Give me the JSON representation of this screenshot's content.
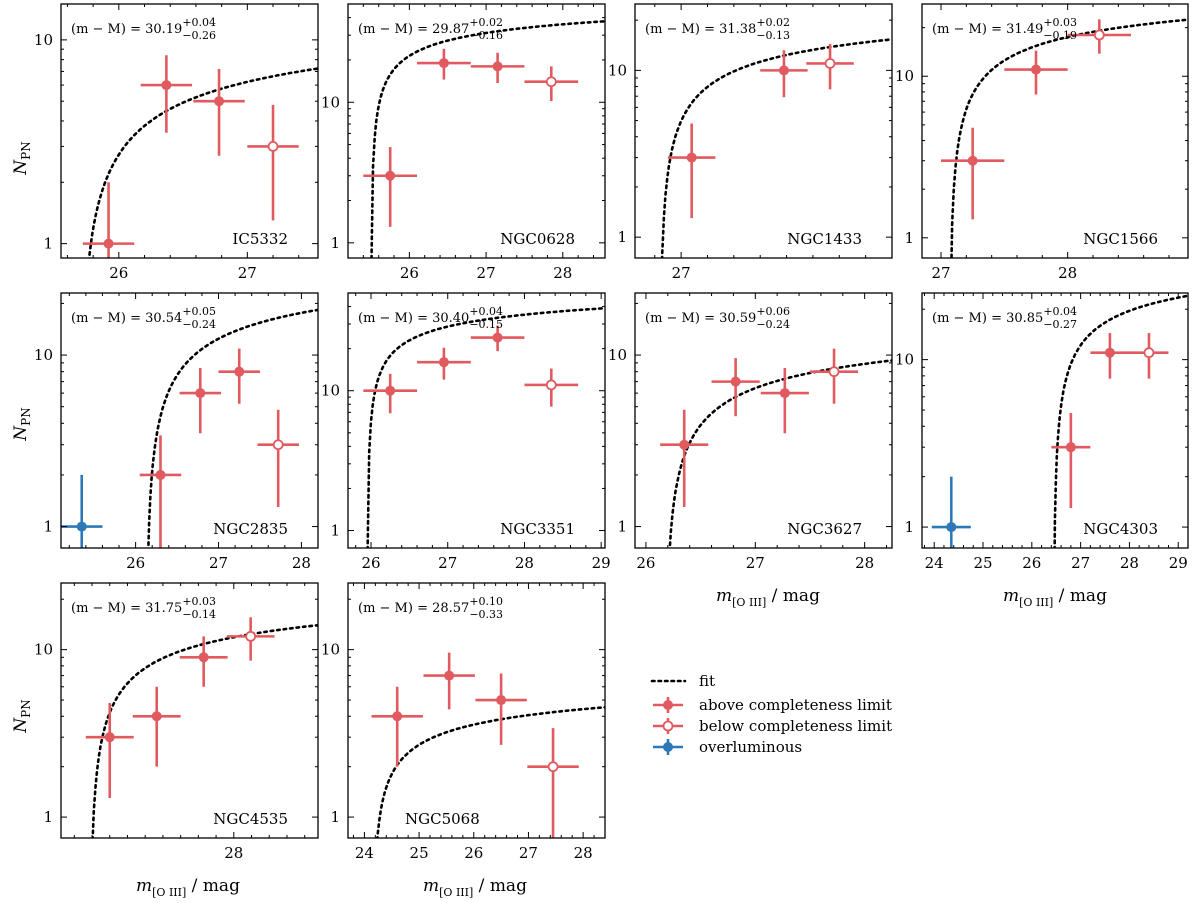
{
  "figure": {
    "ylabel_main": "N",
    "ylabel_sub": "PN",
    "xlabel_main": "m",
    "xlabel_sub": "[O III]",
    "xlabel_unit": " / mag",
    "dm_prefix": "(m − M) = "
  },
  "colors": {
    "above": "#e05a5f",
    "overluminous": "#2d78b7",
    "fit": "#000000"
  },
  "legend": {
    "fit": "fit",
    "above": "above completeness limit",
    "below": "below completeness limit",
    "overluminous": "overluminous"
  },
  "chart_data": [
    {
      "type": "scatter",
      "title": "IC5332",
      "yscale": "log",
      "xlim": [
        25.55,
        27.55
      ],
      "ylim": [
        0.85,
        15
      ],
      "xticks": [
        26,
        27
      ],
      "xticklabels": [
        "26",
        "27"
      ],
      "yticks": [
        1,
        10
      ],
      "yticklabels": [
        "1",
        "10"
      ],
      "dm": {
        "value": "30.19",
        "plus": "+0.04",
        "minus": "−0.26"
      },
      "points": [
        {
          "x": 25.92,
          "y": 1,
          "xerr": 0.2,
          "yerr": [
            1,
            1
          ],
          "kind": "above"
        },
        {
          "x": 26.37,
          "y": 6,
          "xerr": 0.2,
          "yerr": [
            2.5,
            2.4
          ],
          "kind": "above"
        },
        {
          "x": 26.78,
          "y": 5,
          "xerr": 0.2,
          "yerr": [
            2.3,
            2.2
          ],
          "kind": "above"
        },
        {
          "x": 27.2,
          "y": 3,
          "xerr": 0.2,
          "yerr": [
            1.7,
            1.8
          ],
          "kind": "below"
        }
      ],
      "fit": {
        "x0": 25.7,
        "x1": 27.55,
        "a": 3.3,
        "b": 4.3
      }
    },
    {
      "type": "scatter",
      "title": "NGC0628",
      "yscale": "log",
      "xlim": [
        25.2,
        28.55
      ],
      "ylim": [
        0.78,
        50
      ],
      "xticks": [
        26,
        27,
        28
      ],
      "xticklabels": [
        "26",
        "27",
        "28"
      ],
      "yticks": [
        1,
        10
      ],
      "yticklabels": [
        "1",
        "10"
      ],
      "dm": {
        "value": "29.87",
        "plus": "+0.02",
        "minus": "−0.16"
      },
      "points": [
        {
          "x": 25.75,
          "y": 3,
          "xerr": 0.35,
          "yerr": [
            1.7,
            1.8
          ],
          "kind": "above"
        },
        {
          "x": 26.45,
          "y": 19,
          "xerr": 0.35,
          "yerr": [
            4.5,
            5
          ],
          "kind": "above"
        },
        {
          "x": 27.15,
          "y": 18,
          "xerr": 0.35,
          "yerr": [
            4.3,
            4.5
          ],
          "kind": "above"
        },
        {
          "x": 27.85,
          "y": 14,
          "xerr": 0.35,
          "yerr": [
            3.8,
            4
          ],
          "kind": "below"
        }
      ],
      "fit": {
        "x0": 25.5,
        "x1": 28.55,
        "a": 9.5,
        "b": 17
      }
    },
    {
      "type": "scatter",
      "title": "NGC1433",
      "yscale": "log",
      "xlim": [
        26.65,
        28.6
      ],
      "ylim": [
        0.75,
        25
      ],
      "xticks": [
        27
      ],
      "xticklabels": [
        "27"
      ],
      "yticks": [
        1,
        10
      ],
      "yticklabels": [
        "1",
        "10"
      ],
      "dm": {
        "value": "31.38",
        "plus": "+0.02",
        "minus": "−0.13"
      },
      "points": [
        {
          "x": 27.08,
          "y": 3,
          "xerr": 0.18,
          "yerr": [
            1.7,
            1.8
          ],
          "kind": "above"
        },
        {
          "x": 27.78,
          "y": 10,
          "xerr": 0.18,
          "yerr": [
            3.1,
            3.2
          ],
          "kind": "above"
        },
        {
          "x": 28.13,
          "y": 11,
          "xerr": 0.18,
          "yerr": [
            3.3,
            3.4
          ],
          "kind": "below"
        }
      ],
      "fit": {
        "x0": 26.84,
        "x1": 28.6,
        "a": 5.3,
        "b": 9.7
      }
    },
    {
      "type": "scatter",
      "title": "NGC1566",
      "yscale": "log",
      "xlim": [
        26.85,
        28.95
      ],
      "ylim": [
        0.75,
        28
      ],
      "xticks": [
        27,
        28
      ],
      "xticklabels": [
        "27",
        "28"
      ],
      "yticks": [
        1,
        10
      ],
      "yticklabels": [
        "1",
        "10"
      ],
      "dm": {
        "value": "31.49",
        "plus": "+0.03",
        "minus": "−0.19"
      },
      "points": [
        {
          "x": 27.25,
          "y": 3,
          "xerr": 0.25,
          "yerr": [
            1.7,
            1.8
          ],
          "kind": "above"
        },
        {
          "x": 27.75,
          "y": 11,
          "xerr": 0.25,
          "yerr": [
            3.3,
            3.4
          ],
          "kind": "above"
        },
        {
          "x": 28.25,
          "y": 18,
          "xerr": 0.25,
          "yerr": [
            4.2,
            4.5
          ],
          "kind": "below"
        }
      ],
      "fit": {
        "x0": 27.07,
        "x1": 28.95,
        "a": 7.5,
        "b": 10
      }
    },
    {
      "type": "scatter",
      "title": "NGC2835",
      "yscale": "log",
      "xlim": [
        25.1,
        28.2
      ],
      "ylim": [
        0.75,
        23
      ],
      "xticks": [
        26,
        27,
        28
      ],
      "xticklabels": [
        "26",
        "27",
        "28"
      ],
      "yticks": [
        1,
        10
      ],
      "yticklabels": [
        "1",
        "10"
      ],
      "dm": {
        "value": "30.54",
        "plus": "+0.05",
        "minus": "−0.24"
      },
      "points": [
        {
          "x": 25.35,
          "y": 1,
          "xerr": 0.25,
          "yerr": [
            1,
            1
          ],
          "kind": "overluminous"
        },
        {
          "x": 26.3,
          "y": 2,
          "xerr": 0.25,
          "yerr": [
            1.4,
            1.4
          ],
          "kind": "above"
        },
        {
          "x": 26.78,
          "y": 6,
          "xerr": 0.25,
          "yerr": [
            2.5,
            2.4
          ],
          "kind": "above"
        },
        {
          "x": 27.25,
          "y": 8,
          "xerr": 0.25,
          "yerr": [
            2.8,
            2.9
          ],
          "kind": "above"
        },
        {
          "x": 27.72,
          "y": 3,
          "xerr": 0.25,
          "yerr": [
            1.7,
            1.8
          ],
          "kind": "below"
        }
      ],
      "fit": {
        "x0": 26.13,
        "x1": 28.2,
        "a": 8,
        "b": 4.3
      }
    },
    {
      "type": "scatter",
      "title": "NGC3351",
      "yscale": "log",
      "xlim": [
        25.7,
        29.05
      ],
      "ylim": [
        0.75,
        50
      ],
      "xticks": [
        26,
        27,
        28,
        29
      ],
      "xticklabels": [
        "26",
        "27",
        "28",
        "29"
      ],
      "yticks": [
        1,
        10
      ],
      "yticklabels": [
        "1",
        "10"
      ],
      "dm": {
        "value": "30.40",
        "plus": "+0.04",
        "minus": "−0.15"
      },
      "points": [
        {
          "x": 26.25,
          "y": 10,
          "xerr": 0.35,
          "yerr": [
            3.1,
            3.2
          ],
          "kind": "above"
        },
        {
          "x": 26.95,
          "y": 16,
          "xerr": 0.35,
          "yerr": [
            4,
            4.3
          ],
          "kind": "above"
        },
        {
          "x": 27.65,
          "y": 24,
          "xerr": 0.35,
          "yerr": [
            4.8,
            5.2
          ],
          "kind": "above"
        },
        {
          "x": 28.35,
          "y": 11,
          "xerr": 0.35,
          "yerr": [
            3.3,
            3.4
          ],
          "kind": "below"
        }
      ],
      "fit": {
        "x0": 25.95,
        "x1": 29.05,
        "a": 9.7,
        "b": 17.5
      }
    },
    {
      "type": "scatter",
      "title": "NGC3627",
      "yscale": "log",
      "xlim": [
        25.9,
        28.25
      ],
      "ylim": [
        0.75,
        23
      ],
      "xticks": [
        26,
        27,
        28
      ],
      "xticklabels": [
        "26",
        "27",
        "28"
      ],
      "yticks": [
        1,
        10
      ],
      "yticklabels": [
        "1",
        "10"
      ],
      "dm": {
        "value": "30.59",
        "plus": "+0.06",
        "minus": "−0.24"
      },
      "points": [
        {
          "x": 26.35,
          "y": 3,
          "xerr": 0.22,
          "yerr": [
            1.7,
            1.8
          ],
          "kind": "above"
        },
        {
          "x": 26.82,
          "y": 7,
          "xerr": 0.22,
          "yerr": [
            2.6,
            2.6
          ],
          "kind": "above"
        },
        {
          "x": 27.27,
          "y": 6,
          "xerr": 0.22,
          "yerr": [
            2.5,
            2.4
          ],
          "kind": "above"
        },
        {
          "x": 27.72,
          "y": 8,
          "xerr": 0.22,
          "yerr": [
            2.8,
            2.9
          ],
          "kind": "below"
        }
      ],
      "fit": {
        "x0": 26.18,
        "x1": 28.25,
        "a": 3.5,
        "b": 6.4
      }
    },
    {
      "type": "scatter",
      "title": "NGC4303",
      "yscale": "log",
      "xlim": [
        23.75,
        29.2
      ],
      "ylim": [
        0.75,
        25
      ],
      "xticks": [
        24,
        25,
        26,
        27,
        28,
        29
      ],
      "xticklabels": [
        "24",
        "25",
        "26",
        "27",
        "28",
        "29"
      ],
      "yticks": [
        1,
        10
      ],
      "yticklabels": [
        "1",
        "10"
      ],
      "dm": {
        "value": "30.85",
        "plus": "+0.04",
        "minus": "−0.27"
      },
      "points": [
        {
          "x": 24.35,
          "y": 1,
          "xerr": 0.4,
          "yerr": [
            1,
            1
          ],
          "kind": "overluminous"
        },
        {
          "x": 26.8,
          "y": 3,
          "xerr": 0.4,
          "yerr": [
            1.7,
            1.8
          ],
          "kind": "above"
        },
        {
          "x": 27.6,
          "y": 11,
          "xerr": 0.4,
          "yerr": [
            3.3,
            3.4
          ],
          "kind": "above"
        },
        {
          "x": 28.4,
          "y": 11,
          "xerr": 0.4,
          "yerr": [
            3.3,
            3.4
          ],
          "kind": "below"
        }
      ],
      "fit": {
        "x0": 26.45,
        "x1": 29.2,
        "a": 8.5,
        "b": 5.8
      }
    },
    {
      "type": "scatter",
      "title": "NGC4535",
      "yscale": "log",
      "xlim": [
        26.05,
        28.95
      ],
      "ylim": [
        0.75,
        25
      ],
      "xticks": [
        28
      ],
      "xticklabels": [
        "28"
      ],
      "yticks": [
        1,
        10
      ],
      "yticklabels": [
        "1",
        "10"
      ],
      "dm": {
        "value": "31.75",
        "plus": "+0.03",
        "minus": "−0.14"
      },
      "points": [
        {
          "x": 26.6,
          "y": 3,
          "xerr": 0.27,
          "yerr": [
            1.7,
            1.8
          ],
          "kind": "above"
        },
        {
          "x": 27.13,
          "y": 4,
          "xerr": 0.27,
          "yerr": [
            2,
            2
          ],
          "kind": "above"
        },
        {
          "x": 27.66,
          "y": 9,
          "xerr": 0.27,
          "yerr": [
            3,
            3
          ],
          "kind": "above"
        },
        {
          "x": 28.19,
          "y": 12,
          "xerr": 0.27,
          "yerr": [
            3.4,
            3.6
          ],
          "kind": "below"
        }
      ],
      "fit": {
        "x0": 26.38,
        "x1": 28.95,
        "a": 5,
        "b": 6
      }
    },
    {
      "type": "scatter",
      "title": "NGC5068",
      "yscale": "log",
      "xlim": [
        23.7,
        28.4
      ],
      "ylim": [
        0.75,
        25
      ],
      "xticks": [
        24,
        25,
        26,
        27,
        28
      ],
      "xticklabels": [
        "24",
        "25",
        "26",
        "27",
        "28"
      ],
      "yticks": [
        1,
        10
      ],
      "yticklabels": [
        "1",
        "10"
      ],
      "dm": {
        "value": "28.57",
        "plus": "+0.10",
        "minus": "−0.33"
      },
      "points": [
        {
          "x": 24.6,
          "y": 4,
          "xerr": 0.47,
          "yerr": [
            2,
            2
          ],
          "kind": "above"
        },
        {
          "x": 25.55,
          "y": 7,
          "xerr": 0.47,
          "yerr": [
            2.6,
            2.6
          ],
          "kind": "above"
        },
        {
          "x": 26.5,
          "y": 5,
          "xerr": 0.47,
          "yerr": [
            2.3,
            2.2
          ],
          "kind": "above"
        },
        {
          "x": 27.45,
          "y": 2,
          "xerr": 0.47,
          "yerr": [
            1.4,
            1.4
          ],
          "kind": "below"
        }
      ],
      "fit": {
        "x0": 24.15,
        "x1": 28.4,
        "a": 1.2,
        "b": 10
      }
    }
  ]
}
